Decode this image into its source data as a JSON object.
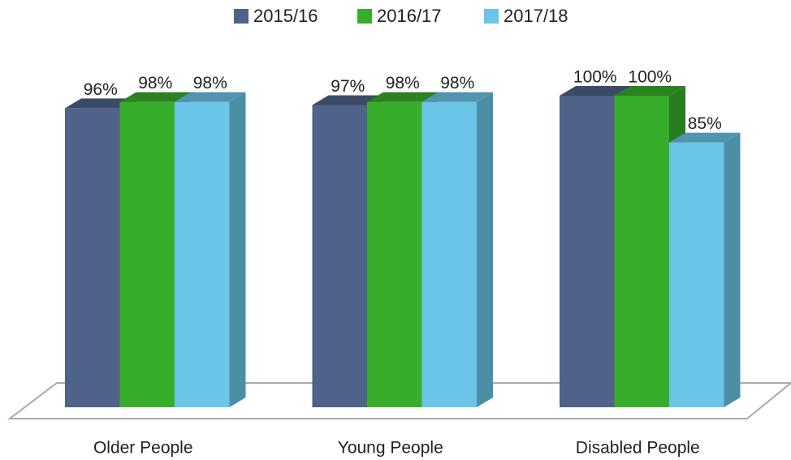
{
  "chart_data": {
    "type": "bar3d",
    "categories": [
      "Older People",
      "Young People",
      "Disabled People"
    ],
    "series": [
      {
        "name": "2015/16",
        "color": "#4f6289",
        "values": [
          96,
          97,
          100
        ],
        "value_labels": [
          "96%",
          "97%",
          "100%"
        ]
      },
      {
        "name": "2016/17",
        "color": "#38ad2c",
        "values": [
          98,
          98,
          100
        ],
        "value_labels": [
          "98%",
          "98%",
          "100%"
        ]
      },
      {
        "name": "2017/18",
        "color": "#6bc5e8",
        "values": [
          98,
          98,
          85
        ],
        "value_labels": [
          "98%",
          "98%",
          "85%"
        ]
      }
    ],
    "ylim": [
      0,
      100
    ],
    "legend": "top"
  }
}
